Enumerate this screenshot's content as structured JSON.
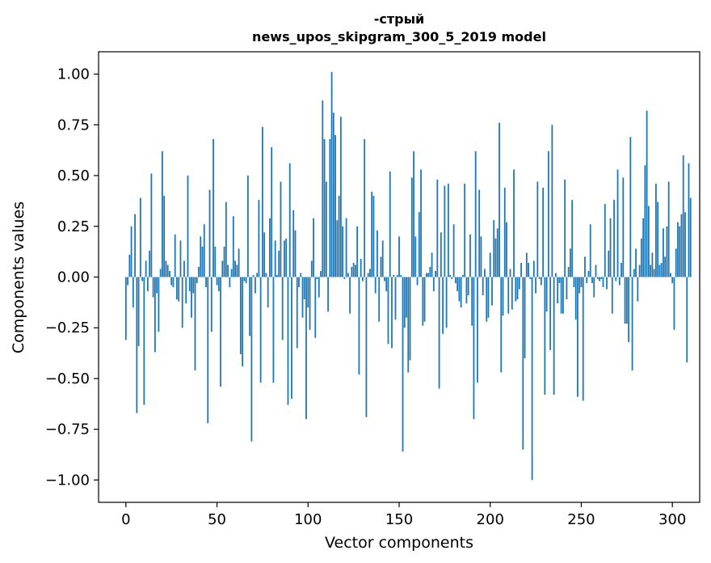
{
  "chart_data": {
    "type": "bar",
    "title": "-стрый",
    "subtitle": "news_upos_skipgram_300_5_2019 model",
    "xlabel": "Vector components",
    "ylabel": "Components values",
    "xlim": [
      -15,
      315
    ],
    "ylim": [
      -1.11,
      1.11
    ],
    "xticks": [
      0,
      50,
      100,
      150,
      200,
      250,
      300
    ],
    "xtick_labels": [
      "0",
      "50",
      "100",
      "150",
      "200",
      "250",
      "300"
    ],
    "yticks": [
      1.0,
      0.75,
      0.5,
      0.25,
      0.0,
      -0.25,
      -0.5,
      -0.75,
      -1.0
    ],
    "ytick_labels": [
      "1.00",
      "0.75",
      "0.50",
      "0.25",
      "0.00",
      "−0.25",
      "−0.50",
      "−0.75",
      "−1.00"
    ],
    "grid": false,
    "bar_color": "#1f77b4",
    "values": [
      -0.31,
      -0.04,
      0.11,
      0.25,
      -0.15,
      0.31,
      -0.67,
      -0.34,
      0.39,
      -0.02,
      -0.63,
      0.08,
      -0.07,
      0.13,
      0.51,
      -0.1,
      -0.37,
      -0.08,
      -0.27,
      0.04,
      0.62,
      0.4,
      0.08,
      0.06,
      0.03,
      -0.04,
      -0.05,
      0.21,
      -0.11,
      -0.12,
      0.18,
      -0.25,
      0.08,
      -0.13,
      0.5,
      -0.07,
      -0.2,
      -0.08,
      -0.46,
      -0.03,
      0.05,
      0.2,
      0.15,
      0.26,
      -0.05,
      -0.72,
      0.43,
      -0.27,
      0.68,
      0.15,
      -0.04,
      -0.07,
      -0.54,
      0.08,
      0.15,
      0.37,
      0.06,
      -0.05,
      0.04,
      0.3,
      0.08,
      0.06,
      0.14,
      -0.38,
      -0.44,
      -0.02,
      -0.03,
      0.5,
      -0.29,
      -0.81,
      0.01,
      -0.08,
      0.02,
      0.38,
      -0.52,
      0.74,
      0.22,
      0.02,
      -0.15,
      0.29,
      0.64,
      -0.52,
      0.18,
      0.01,
      0.13,
      0.47,
      -0.31,
      0.18,
      0.19,
      -0.63,
      0.56,
      -0.6,
      0.33,
      0.23,
      -0.35,
      -0.05,
      0.02,
      -0.2,
      -0.11,
      -0.7,
      -0.15,
      -0.26,
      0.08,
      0.29,
      -0.3,
      -0.01,
      -0.1,
      0.03,
      0.87,
      0.68,
      0.47,
      -0.17,
      0.68,
      1.01,
      0.81,
      0.7,
      0.28,
      0.4,
      0.79,
      0.25,
      -0.01,
      0.29,
      0.02,
      -0.18,
      0.05,
      0.07,
      0.06,
      0.25,
      -0.48,
      0.09,
      -0.02,
      0.68,
      -0.69,
      0.02,
      0.04,
      0.42,
      0.4,
      -0.08,
      0.23,
      -0.22,
      0.1,
      0.18,
      -0.02,
      -0.07,
      -0.33,
      0.52,
      -0.35,
      0.01,
      -0.21,
      0.01,
      0.2,
      0.01,
      -0.86,
      -0.25,
      -0.2,
      -0.47,
      -0.41,
      0.49,
      0.62,
      0.2,
      -0.04,
      0.32,
      0.53,
      -0.24,
      -0.22,
      0.02,
      0.02,
      0.05,
      0.12,
      -0.07,
      0.03,
      0.48,
      -0.55,
      0.22,
      -0.28,
      0.45,
      -0.25,
      0.46,
      0.01,
      -0.01,
      0.26,
      -0.03,
      -0.07,
      -0.12,
      -0.15,
      0.01,
      0.46,
      -0.13,
      -0.09,
      0.21,
      -0.24,
      -0.7,
      0.62,
      -0.52,
      0.43,
      0.2,
      -0.09,
      0.04,
      -0.22,
      -0.2,
      0.12,
      -0.14,
      0.28,
      0.19,
      0.24,
      0.76,
      -0.47,
      -0.19,
      0.44,
      0.27,
      -0.18,
      0.04,
      -0.16,
      0.53,
      -0.12,
      -0.11,
      -0.06,
      0.07,
      -0.85,
      -0.4,
      0.12,
      0.07,
      -0.01,
      -1.0,
      0.08,
      -0.08,
      0.47,
      -0.01,
      -0.04,
      0.44,
      -0.58,
      -0.17,
      0.62,
      -0.36,
      0.75,
      -0.58,
      0.02,
      -0.13,
      -0.03,
      -0.18,
      -0.18,
      0.48,
      -0.11,
      0.05,
      0.14,
      0.38,
      -0.05,
      -0.21,
      -0.59,
      -0.08,
      -0.05,
      -0.61,
      0.1,
      -0.03,
      0.03,
      0.26,
      -0.03,
      -0.1,
      0.06,
      -0.01,
      -0.02,
      -0.01,
      -0.05,
      0.36,
      -0.06,
      0.13,
      0.29,
      -0.18,
      0.38,
      -0.02,
      0.53,
      -0.04,
      0.07,
      0.49,
      -0.23,
      -0.23,
      -0.32,
      0.69,
      -0.46,
      0.04,
      0.14,
      -0.12,
      0.06,
      0.19,
      0.29,
      0.55,
      0.82,
      0.35,
      0.06,
      0.12,
      0.04,
      0.46,
      0.37,
      0.06,
      0.07,
      0.24,
      0.1,
      0.25,
      0.47,
      0.02,
      -0.03,
      -0.26,
      0.14,
      0.27,
      0.25,
      0.31,
      0.6,
      0.32,
      -0.42,
      0.56,
      0.39
    ]
  }
}
